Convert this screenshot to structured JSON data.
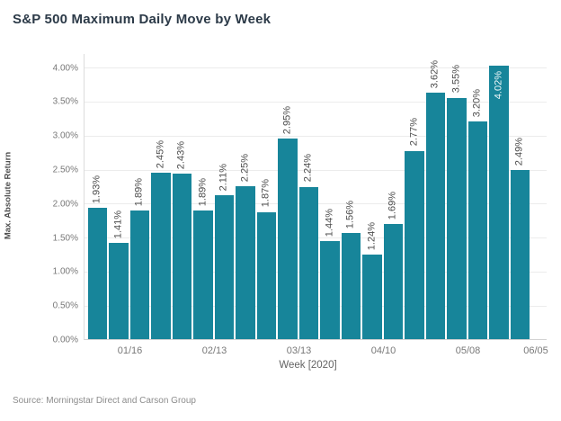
{
  "title": "S&P 500 Maximum Daily Move by Week",
  "source": "Source: Morningstar Direct and Carson Group",
  "colors": {
    "bar": "#17859A",
    "bar_label": "#4c4c4c",
    "bar_label_inside": "#f2fafb",
    "title": "#2c3a48",
    "axis_text": "#787878",
    "gridline": "#ececec"
  },
  "chart_data": {
    "type": "bar",
    "title": "S&P 500 Maximum Daily Move by Week",
    "xlabel": "Week [2020]",
    "ylabel": "Max. Absolute Return",
    "ylim": [
      0,
      4.0
    ],
    "grid": "horizontal-every-0.5%",
    "legend": "none",
    "y_tick_labels": [
      "0.00%",
      "0.50%",
      "1.00%",
      "1.50%",
      "2.00%",
      "2.50%",
      "3.00%",
      "3.50%",
      "4.00%"
    ],
    "x_tick_labels": [
      "01/16",
      "02/13",
      "03/13",
      "04/10",
      "05/08",
      "06/05"
    ],
    "values": [
      1.93,
      1.41,
      1.89,
      2.45,
      2.43,
      1.89,
      2.11,
      2.25,
      1.87,
      2.95,
      2.24,
      1.44,
      1.56,
      1.24,
      1.69,
      2.77,
      3.62,
      3.55,
      3.2,
      4.02,
      2.49
    ],
    "value_labels": [
      "1.93%",
      "1.41%",
      "1.89%",
      "2.45%",
      "2.43%",
      "1.89%",
      "2.11%",
      "2.25%",
      "1.87%",
      "2.95%",
      "2.24%",
      "1.44%",
      "1.56%",
      "1.24%",
      "1.69%",
      "2.77%",
      "3.62%",
      "3.55%",
      "3.20%",
      "4.02%",
      "2.49%"
    ]
  }
}
